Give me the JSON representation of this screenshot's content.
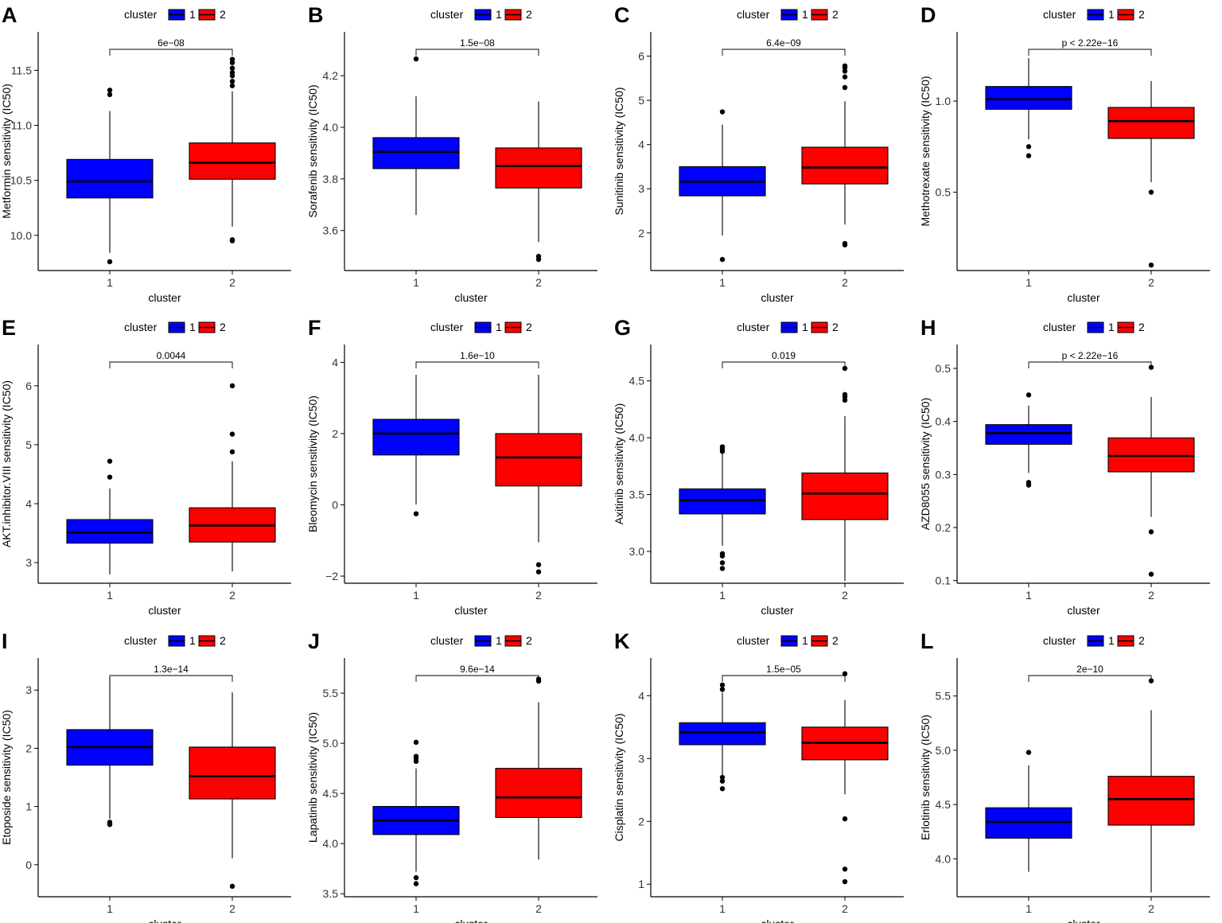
{
  "legend": {
    "title": "cluster",
    "labels": [
      "1",
      "2"
    ]
  },
  "colors": {
    "cluster1": "#0000FF",
    "cluster2": "#FF0000",
    "axis": "#000000"
  },
  "chart_data": [
    {
      "type": "box",
      "letter": "A",
      "ylabel": "Metformin sensitivity (IC50)",
      "xlabel": "cluster",
      "categories": [
        "1",
        "2"
      ],
      "ylim": [
        9.68,
        11.85
      ],
      "yticks": [
        10.0,
        10.5,
        11.0,
        11.5
      ],
      "ytick_labels": [
        "10.0",
        "10.5",
        "11.0",
        "11.5"
      ],
      "pvalue": "6e−08",
      "boxes": [
        {
          "q1": 10.34,
          "median": 10.49,
          "q3": 10.69,
          "wlo": 9.84,
          "whi": 11.13,
          "outliers": [
            11.28,
            11.32,
            9.76
          ]
        },
        {
          "q1": 10.51,
          "median": 10.66,
          "q3": 10.84,
          "wlo": 10.08,
          "whi": 11.31,
          "outliers": [
            11.36,
            11.4,
            11.45,
            11.48,
            11.52,
            11.57,
            11.6,
            9.96,
            9.95
          ]
        }
      ]
    },
    {
      "type": "box",
      "letter": "B",
      "ylabel": "Sorafenib sensitivity (IC50)",
      "xlabel": "cluster",
      "categories": [
        "1",
        "2"
      ],
      "ylim": [
        3.445,
        4.37
      ],
      "yticks": [
        3.6,
        3.8,
        4.0,
        4.2
      ],
      "ytick_labels": [
        "3.6",
        "3.8",
        "4.0",
        "4.2"
      ],
      "pvalue": "1.5e−08",
      "boxes": [
        {
          "q1": 3.84,
          "median": 3.905,
          "q3": 3.96,
          "wlo": 3.66,
          "whi": 4.12,
          "outliers": [
            4.265
          ]
        },
        {
          "q1": 3.765,
          "median": 3.85,
          "q3": 3.92,
          "wlo": 3.555,
          "whi": 4.1,
          "outliers": [
            3.5,
            3.488
          ]
        }
      ]
    },
    {
      "type": "box",
      "letter": "C",
      "ylabel": "Sunitinib sensitivity (IC50)",
      "xlabel": "cluster",
      "categories": [
        "1",
        "2"
      ],
      "ylim": [
        1.15,
        6.55
      ],
      "yticks": [
        2,
        3,
        4,
        5,
        6
      ],
      "ytick_labels": [
        "2",
        "3",
        "4",
        "5",
        "6"
      ],
      "pvalue": "6.4e−09",
      "boxes": [
        {
          "q1": 2.84,
          "median": 3.16,
          "q3": 3.5,
          "wlo": 1.94,
          "whi": 4.45,
          "outliers": [
            4.74,
            1.4
          ]
        },
        {
          "q1": 3.11,
          "median": 3.48,
          "q3": 3.94,
          "wlo": 2.19,
          "whi": 4.98,
          "outliers": [
            5.29,
            5.53,
            5.66,
            5.74,
            5.78,
            1.76,
            1.73
          ]
        }
      ]
    },
    {
      "type": "box",
      "letter": "D",
      "ylabel": "Methotrexate sensitivity (IC50)",
      "xlabel": "cluster",
      "categories": [
        "1",
        "2"
      ],
      "ylim": [
        0.07,
        1.38
      ],
      "yticks": [
        0.5,
        1.0
      ],
      "ytick_labels": [
        "0.5",
        "1.0"
      ],
      "pvalue": "p < 2.22e−16",
      "boxes": [
        {
          "q1": 0.955,
          "median": 1.01,
          "q3": 1.08,
          "wlo": 0.79,
          "whi": 1.235,
          "outliers": [
            0.75,
            0.7
          ]
        },
        {
          "q1": 0.795,
          "median": 0.89,
          "q3": 0.965,
          "wlo": 0.555,
          "whi": 1.11,
          "outliers": [
            0.5,
            0.1
          ]
        }
      ]
    },
    {
      "type": "box",
      "letter": "E",
      "ylabel": "AKT.inhibitor.VIII sensitivity (IC50)",
      "xlabel": "cluster",
      "categories": [
        "1",
        "2"
      ],
      "ylim": [
        2.65,
        6.7
      ],
      "yticks": [
        3,
        4,
        5,
        6
      ],
      "ytick_labels": [
        "3",
        "4",
        "5",
        "6"
      ],
      "pvalue": "0.0044",
      "boxes": [
        {
          "q1": 3.33,
          "median": 3.51,
          "q3": 3.73,
          "wlo": 2.8,
          "whi": 4.26,
          "outliers": [
            4.45,
            4.72
          ]
        },
        {
          "q1": 3.35,
          "median": 3.63,
          "q3": 3.93,
          "wlo": 2.85,
          "whi": 4.72,
          "outliers": [
            4.88,
            5.18,
            6.0
          ]
        }
      ]
    },
    {
      "type": "box",
      "letter": "F",
      "ylabel": "Bleomycin sensitivity (IC50)",
      "xlabel": "cluster",
      "categories": [
        "1",
        "2"
      ],
      "ylim": [
        -2.2,
        4.5
      ],
      "yticks": [
        -2,
        0,
        2,
        4
      ],
      "ytick_labels": [
        "−2",
        "0",
        "2",
        "4"
      ],
      "pvalue": "1.6e−10",
      "boxes": [
        {
          "q1": 1.4,
          "median": 2.0,
          "q3": 2.4,
          "wlo": 0.01,
          "whi": 3.65,
          "outliers": [
            -0.25
          ]
        },
        {
          "q1": 0.53,
          "median": 1.33,
          "q3": 2.0,
          "wlo": -1.05,
          "whi": 3.65,
          "outliers": [
            -1.68,
            -1.88
          ]
        }
      ]
    },
    {
      "type": "box",
      "letter": "G",
      "ylabel": "Axitinib sensitivity (IC50)",
      "xlabel": "cluster",
      "categories": [
        "1",
        "2"
      ],
      "ylim": [
        2.72,
        4.82
      ],
      "yticks": [
        3.0,
        3.5,
        4.0,
        4.5
      ],
      "ytick_labels": [
        "3.0",
        "3.5",
        "4.0",
        "4.5"
      ],
      "pvalue": "0.019",
      "boxes": [
        {
          "q1": 3.33,
          "median": 3.45,
          "q3": 3.55,
          "wlo": 3.05,
          "whi": 3.86,
          "outliers": [
            3.88,
            3.9,
            3.92,
            2.98,
            2.96,
            2.9,
            2.85
          ]
        },
        {
          "q1": 3.28,
          "median": 3.51,
          "q3": 3.69,
          "wlo": 2.74,
          "whi": 4.19,
          "outliers": [
            4.33,
            4.36,
            4.38,
            4.61
          ]
        }
      ]
    },
    {
      "type": "box",
      "letter": "H",
      "ylabel": "AZD8055 sensitivity (IC50)",
      "xlabel": "cluster",
      "categories": [
        "1",
        "2"
      ],
      "ylim": [
        0.095,
        0.545
      ],
      "yticks": [
        0.1,
        0.2,
        0.3,
        0.4,
        0.5
      ],
      "ytick_labels": [
        "0.1",
        "0.2",
        "0.3",
        "0.4",
        "0.5"
      ],
      "pvalue": "p < 2.22e−16",
      "boxes": [
        {
          "q1": 0.357,
          "median": 0.378,
          "q3": 0.394,
          "wlo": 0.303,
          "whi": 0.43,
          "outliers": [
            0.45,
            0.285,
            0.28
          ]
        },
        {
          "q1": 0.305,
          "median": 0.335,
          "q3": 0.369,
          "wlo": 0.22,
          "whi": 0.446,
          "outliers": [
            0.502,
            0.192,
            0.112
          ]
        }
      ]
    },
    {
      "type": "box",
      "letter": "I",
      "ylabel": "Etoposide sensitivity (IC50)",
      "xlabel": "cluster",
      "categories": [
        "1",
        "2"
      ],
      "ylim": [
        -0.55,
        3.55
      ],
      "yticks": [
        0,
        1,
        2,
        3
      ],
      "ytick_labels": [
        "0",
        "1",
        "2",
        "3"
      ],
      "pvalue": "1.3e−14",
      "boxes": [
        {
          "q1": 1.71,
          "median": 2.02,
          "q3": 2.32,
          "wlo": 0.79,
          "whi": 3.22,
          "outliers": [
            0.73,
            0.69
          ]
        },
        {
          "q1": 1.13,
          "median": 1.52,
          "q3": 2.02,
          "wlo": 0.11,
          "whi": 2.96,
          "outliers": [
            -0.37
          ]
        }
      ]
    },
    {
      "type": "box",
      "letter": "J",
      "ylabel": "Lapatinib sensitivity (IC50)",
      "xlabel": "cluster",
      "categories": [
        "1",
        "2"
      ],
      "ylim": [
        3.47,
        5.85
      ],
      "yticks": [
        3.5,
        4.0,
        4.5,
        5.0,
        5.5
      ],
      "ytick_labels": [
        "3.5",
        "4.0",
        "4.5",
        "5.0",
        "5.5"
      ],
      "pvalue": "9.6e−14",
      "boxes": [
        {
          "q1": 4.09,
          "median": 4.23,
          "q3": 4.37,
          "wlo": 3.72,
          "whi": 4.75,
          "outliers": [
            4.82,
            4.85,
            4.87,
            5.01,
            3.66,
            3.6
          ]
        },
        {
          "q1": 4.26,
          "median": 4.46,
          "q3": 4.75,
          "wlo": 3.84,
          "whi": 5.41,
          "outliers": [
            5.62,
            5.64
          ]
        }
      ]
    },
    {
      "type": "box",
      "letter": "K",
      "ylabel": "Cisplatin sensitivity (IC50)",
      "xlabel": "cluster",
      "categories": [
        "1",
        "2"
      ],
      "ylim": [
        0.8,
        4.6
      ],
      "yticks": [
        1,
        2,
        3,
        4
      ],
      "ytick_labels": [
        "1",
        "2",
        "3",
        "4"
      ],
      "pvalue": "1.5e−05",
      "boxes": [
        {
          "q1": 3.22,
          "median": 3.42,
          "q3": 3.57,
          "wlo": 2.72,
          "whi": 4.05,
          "outliers": [
            4.1,
            4.17,
            2.7,
            2.64,
            2.52
          ]
        },
        {
          "q1": 2.98,
          "median": 3.25,
          "q3": 3.5,
          "wlo": 2.43,
          "whi": 3.93,
          "outliers": [
            4.35,
            2.04,
            1.24,
            1.04
          ]
        }
      ]
    },
    {
      "type": "box",
      "letter": "L",
      "ylabel": "Erlotinib sensitivity (IC50)",
      "xlabel": "cluster",
      "categories": [
        "1",
        "2"
      ],
      "ylim": [
        3.65,
        5.85
      ],
      "yticks": [
        4.0,
        4.5,
        5.0,
        5.5
      ],
      "ytick_labels": [
        "4.0",
        "4.5",
        "5.0",
        "5.5"
      ],
      "pvalue": "2e−10",
      "boxes": [
        {
          "q1": 4.19,
          "median": 4.34,
          "q3": 4.47,
          "wlo": 3.88,
          "whi": 4.86,
          "outliers": [
            4.98
          ]
        },
        {
          "q1": 4.31,
          "median": 4.55,
          "q3": 4.76,
          "wlo": 3.69,
          "whi": 5.37,
          "outliers": [
            5.64
          ]
        }
      ]
    }
  ]
}
